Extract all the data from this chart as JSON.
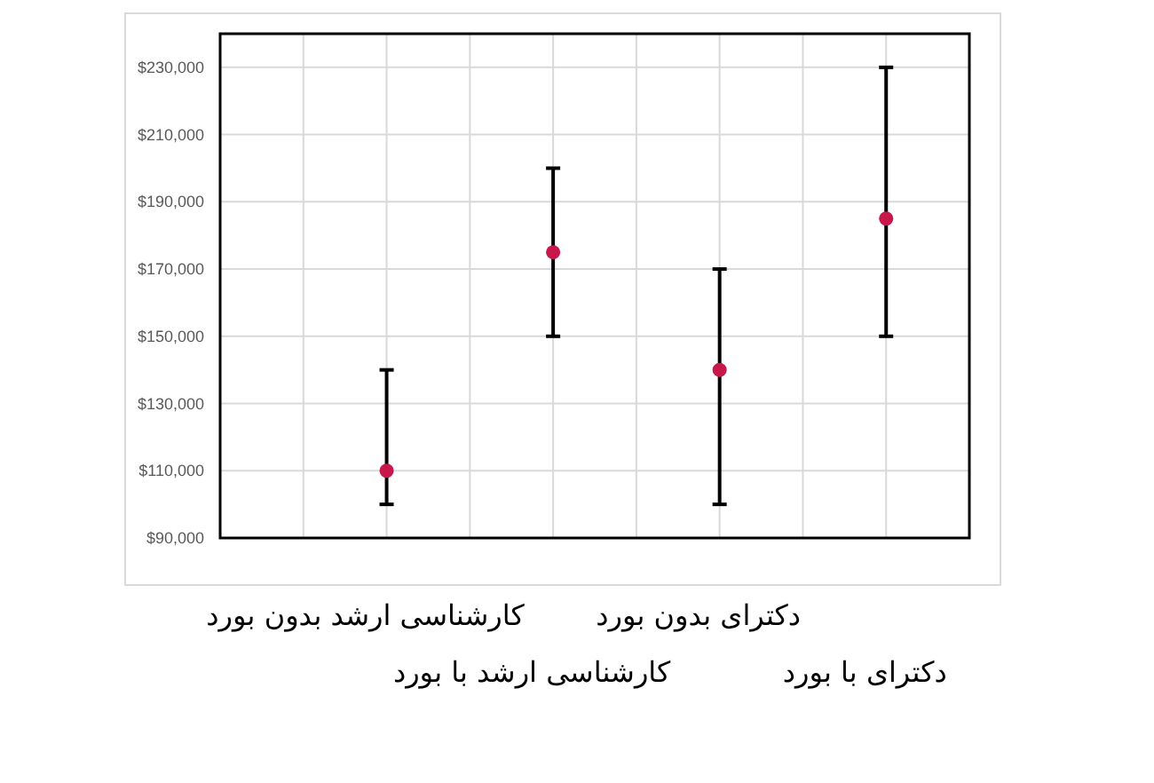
{
  "chart_data": {
    "type": "scatter",
    "categories": [
      "کارشناسی ارشد بدون بورد",
      "کارشناسی ارشد با بورد",
      "دکترای بدون بورد",
      "دکترای با بورد"
    ],
    "series": [
      {
        "color": "#c8174a",
        "values": [
          110000,
          175000,
          140000,
          185000
        ],
        "errors": [
          [
            100000,
            140000
          ],
          [
            150000,
            200000
          ],
          [
            100000,
            170000
          ],
          [
            150000,
            230000
          ]
        ]
      }
    ],
    "ylim": [
      90000,
      240000
    ],
    "yticks": [
      {
        "value": 90000,
        "label": "$90,000"
      },
      {
        "value": 110000,
        "label": "$110,000"
      },
      {
        "value": 130000,
        "label": "$130,000"
      },
      {
        "value": 150000,
        "label": "$150,000"
      },
      {
        "value": 170000,
        "label": "$170,000"
      },
      {
        "value": 190000,
        "label": "$190,000"
      },
      {
        "value": 210000,
        "label": "$210,000"
      },
      {
        "value": 230000,
        "label": "$230,000"
      }
    ],
    "grid": true,
    "marker": "circle"
  }
}
